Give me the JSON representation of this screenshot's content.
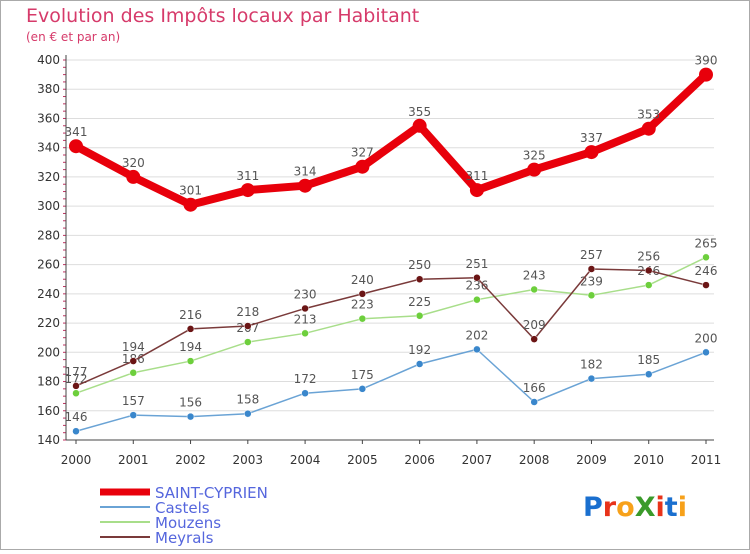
{
  "chart_data": {
    "type": "line",
    "title": "Evolution des Impôts locaux par Habitant",
    "subtitle": "(en € et par an)",
    "xlabel": "",
    "ylabel": "",
    "categories": [
      "2000",
      "2001",
      "2002",
      "2003",
      "2004",
      "2005",
      "2006",
      "2007",
      "2008",
      "2009",
      "2010",
      "2011"
    ],
    "ylim": [
      140,
      400
    ],
    "yticks": [
      140,
      160,
      180,
      200,
      220,
      240,
      260,
      280,
      300,
      320,
      340,
      360,
      380,
      400
    ],
    "grid": true,
    "legend_position": "bottom-left",
    "series": [
      {
        "name": "SAINT-CYPRIEN",
        "color": "#e8000b",
        "marker_color": "#e8000b",
        "label_color": "#555555",
        "emphasis": true,
        "values": [
          341,
          320,
          301,
          311,
          314,
          327,
          355,
          311,
          325,
          337,
          353,
          390
        ]
      },
      {
        "name": "Castels",
        "color": "#6aa3d5",
        "marker_color": "#3a87cc",
        "label_color": "#555555",
        "emphasis": false,
        "values": [
          146,
          157,
          156,
          158,
          172,
          175,
          192,
          202,
          166,
          182,
          185,
          200
        ]
      },
      {
        "name": "Mouzens",
        "color": "#a8de8a",
        "marker_color": "#6dcf3c",
        "label_color": "#555555",
        "emphasis": false,
        "values": [
          172,
          186,
          194,
          207,
          213,
          223,
          225,
          236,
          243,
          239,
          246,
          265
        ]
      },
      {
        "name": "Meyrals",
        "color": "#7a3a3a",
        "marker_color": "#6b1515",
        "label_color": "#555555",
        "emphasis": false,
        "values": [
          177,
          194,
          216,
          218,
          230,
          240,
          250,
          251,
          209,
          257,
          256,
          246
        ]
      }
    ]
  },
  "branding": {
    "logo_text": "ProXiti",
    "colors": [
      "#1a6fcf",
      "#e8331a",
      "#f7a11a",
      "#3a9a2a",
      "#e8331a",
      "#1a6fcf",
      "#f7a11a"
    ]
  },
  "colors": {
    "title": "#d63a6a",
    "axis_label": "#333333",
    "grid": "#dddddd",
    "frame": "#999999"
  }
}
